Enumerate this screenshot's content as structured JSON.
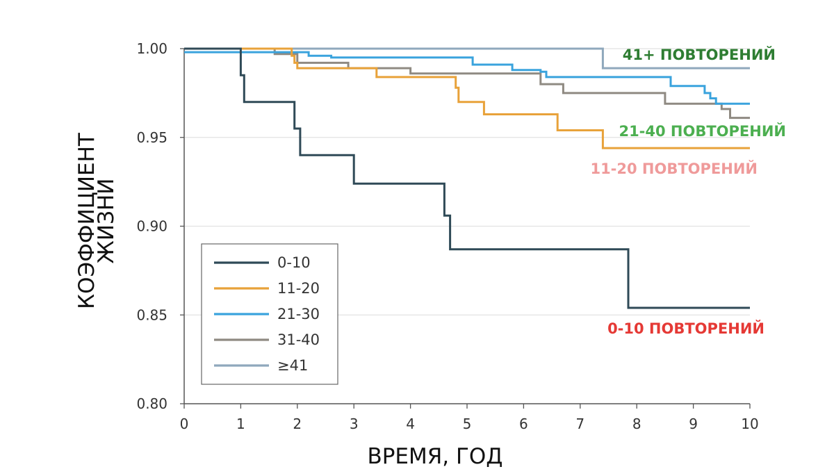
{
  "chart_data": {
    "type": "line",
    "step": true,
    "xlabel": "ВРЕМЯ, ГОД",
    "ylabel": [
      "КОЭФФИЦИЕНТ",
      "ЖИЗНИ"
    ],
    "xlim": [
      0,
      10
    ],
    "ylim": [
      0.8,
      1.0
    ],
    "x_ticks": [
      0,
      1,
      2,
      3,
      4,
      5,
      6,
      7,
      8,
      9,
      10
    ],
    "y_ticks": [
      1.0,
      0.95,
      0.9,
      0.85,
      0.8
    ],
    "y_tick_labels": [
      "1.00",
      "0.95",
      "0.90",
      "0.85",
      "0.80"
    ],
    "grid": "horizontal",
    "legend": {
      "placement": "lower-left"
    },
    "series": [
      {
        "name": "0-10",
        "color": "#2f4a57",
        "points": [
          [
            0,
            1.0
          ],
          [
            1.0,
            0.995
          ],
          [
            1.0,
            0.985
          ],
          [
            1.06,
            0.97
          ],
          [
            1.95,
            0.955
          ],
          [
            2.05,
            0.94
          ],
          [
            3.0,
            0.924
          ],
          [
            4.6,
            0.906
          ],
          [
            4.7,
            0.887
          ],
          [
            7.85,
            0.854
          ],
          [
            10,
            0.854
          ]
        ]
      },
      {
        "name": "11-20",
        "color": "#e8a23a",
        "points": [
          [
            0,
            1.0
          ],
          [
            1.9,
            0.996
          ],
          [
            1.95,
            0.992
          ],
          [
            2.0,
            0.989
          ],
          [
            3.4,
            0.984
          ],
          [
            4.8,
            0.978
          ],
          [
            4.85,
            0.97
          ],
          [
            5.3,
            0.963
          ],
          [
            6.6,
            0.954
          ],
          [
            7.4,
            0.944
          ],
          [
            10,
            0.944
          ]
        ]
      },
      {
        "name": "21-30",
        "color": "#3aa3dd",
        "points": [
          [
            0,
            0.998
          ],
          [
            2.2,
            0.996
          ],
          [
            2.6,
            0.995
          ],
          [
            5.1,
            0.991
          ],
          [
            5.8,
            0.988
          ],
          [
            6.3,
            0.987
          ],
          [
            6.4,
            0.984
          ],
          [
            8.6,
            0.979
          ],
          [
            9.2,
            0.975
          ],
          [
            9.3,
            0.972
          ],
          [
            9.4,
            0.969
          ],
          [
            10,
            0.969
          ]
        ]
      },
      {
        "name": "31-40",
        "color": "#8f8a82",
        "points": [
          [
            0,
            1.0
          ],
          [
            1.6,
            0.997
          ],
          [
            2.0,
            0.992
          ],
          [
            2.9,
            0.989
          ],
          [
            4.0,
            0.986
          ],
          [
            6.3,
            0.98
          ],
          [
            6.7,
            0.975
          ],
          [
            8.5,
            0.969
          ],
          [
            9.5,
            0.966
          ],
          [
            9.65,
            0.961
          ],
          [
            10,
            0.961
          ]
        ]
      },
      {
        "name": "≥41",
        "color": "#8fa8bc",
        "points": [
          [
            0,
            1.0
          ],
          [
            7.4,
            0.989
          ],
          [
            10,
            0.989
          ]
        ]
      }
    ],
    "annotations": [
      {
        "text": "41+ ПОВТОРЕНИЙ",
        "color": "#2e7d32"
      },
      {
        "text": "21-40 ПОВТОРЕНИЙ",
        "color": "#4caf50"
      },
      {
        "text": "11-20 ПОВТОРЕНИЙ",
        "color": "#ef9a9a"
      },
      {
        "text": "0-10 ПОВТОРЕНИЙ",
        "color": "#e53935"
      }
    ],
    "colors": {
      "grid": "#e2e2e2",
      "axis": "#555555",
      "legend_border": "#666666"
    }
  }
}
